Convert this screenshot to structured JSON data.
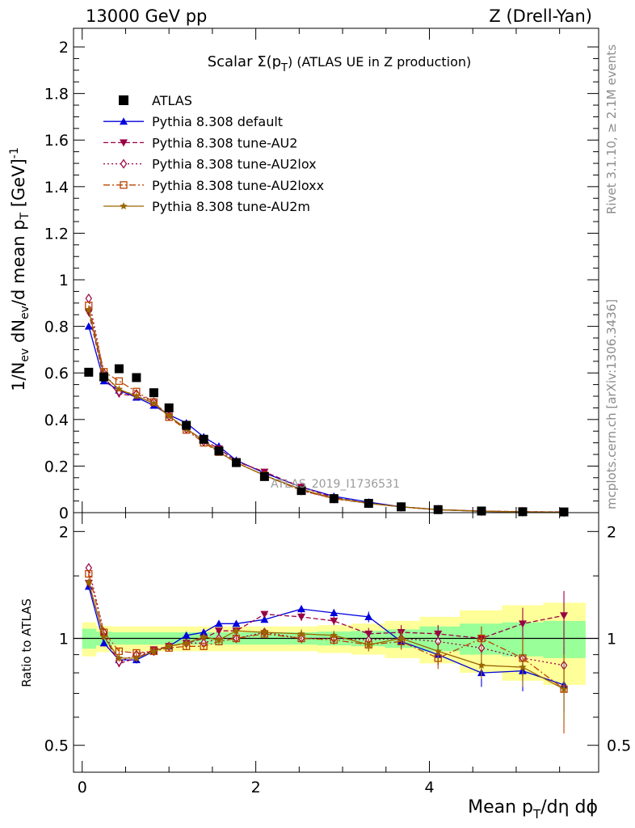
{
  "header": {
    "left": "13000 GeV pp",
    "right": "Z (Drell-Yan)"
  },
  "side_labels": {
    "rivet": "Rivet 3.1.10, ≥ 2.1M events",
    "mcplots": "mcplots.cern.ch [arXiv:1306.3436]"
  },
  "watermark": "ATLAS_2019_I1736531",
  "chart_data": [
    {
      "type": "line",
      "panel": "main",
      "title": "Scalar Σ(p_T) (ATLAS UE in Z production)",
      "title_parts": {
        "pre": "Scalar Σ(p",
        "sub": "T",
        "post": ") (ATLAS UE in Z production)"
      },
      "xlabel": "Mean p_T/dη dϕ",
      "xlabel_parts": {
        "pre": "Mean p",
        "sub": "T",
        "post": "/dη dϕ"
      },
      "ylabel": "1/N_ev dN_ev/d mean p_T [GeV]^-1",
      "xlim": [
        -0.1,
        5.95
      ],
      "ylim": [
        0,
        2.08
      ],
      "x_ticks": [
        0,
        2,
        4
      ],
      "y_ticks": [
        0,
        0.2,
        0.4,
        0.6,
        0.8,
        1,
        1.2,
        1.4,
        1.6,
        1.8,
        2
      ],
      "y_tick_labels": [
        "0",
        "0.2",
        "0.4",
        "0.6",
        "0.8",
        "1",
        "1.2",
        "1.4",
        "1.6",
        "1.8",
        "2"
      ],
      "legend_position": "top-left",
      "x": [
        0.075,
        0.25,
        0.425,
        0.625,
        0.825,
        1.0,
        1.2,
        1.4,
        1.575,
        1.775,
        2.1,
        2.525,
        2.9,
        3.3,
        3.675,
        4.1,
        4.6,
        5.075,
        5.55
      ],
      "data": {
        "name": "ATLAS",
        "values": [
          0.603,
          0.583,
          0.618,
          0.58,
          0.515,
          0.45,
          0.375,
          0.315,
          0.265,
          0.215,
          0.155,
          0.095,
          0.06,
          0.04,
          0.025,
          0.013,
          0.007,
          0.004,
          0.003
        ]
      },
      "series": [
        {
          "name": "Pythia 8.308 default",
          "color": "#0000dd",
          "marker": "triangle-up",
          "dash": "",
          "values": [
            0.8,
            0.565,
            0.525,
            0.495,
            0.46,
            0.42,
            0.385,
            0.325,
            0.285,
            0.225,
            0.17,
            0.11,
            0.07,
            0.045,
            0.025,
            0.013,
            0.006,
            0.003,
            0.002
          ]
        },
        {
          "name": "Pythia 8.308 tune-AU2",
          "color": "#990044",
          "marker": "triangle-down",
          "dash": "6,3",
          "values": [
            0.86,
            0.58,
            0.51,
            0.5,
            0.47,
            0.415,
            0.36,
            0.31,
            0.275,
            0.22,
            0.175,
            0.11,
            0.065,
            0.04,
            0.025,
            0.013,
            0.007,
            0.004,
            0.003
          ]
        },
        {
          "name": "Pythia 8.308 tune-AU2lox",
          "color": "#990044",
          "marker": "diamond-open",
          "dash": "2,3",
          "values": [
            0.92,
            0.6,
            0.52,
            0.51,
            0.475,
            0.415,
            0.36,
            0.305,
            0.265,
            0.215,
            0.16,
            0.095,
            0.06,
            0.04,
            0.025,
            0.013,
            0.006,
            0.004,
            0.002
          ]
        },
        {
          "name": "Pythia 8.308 tune-AU2loxx",
          "color": "#bb4400",
          "marker": "square-open",
          "dash": "8,3,2,3",
          "values": [
            0.89,
            0.605,
            0.565,
            0.52,
            0.475,
            0.41,
            0.355,
            0.3,
            0.26,
            0.215,
            0.16,
            0.095,
            0.06,
            0.04,
            0.025,
            0.012,
            0.007,
            0.003,
            0.002
          ]
        },
        {
          "name": "Pythia 8.308 tune-AU2m",
          "color": "#996600",
          "marker": "star",
          "dash": "",
          "values": [
            0.87,
            0.59,
            0.53,
            0.5,
            0.47,
            0.415,
            0.36,
            0.31,
            0.26,
            0.215,
            0.16,
            0.1,
            0.062,
            0.04,
            0.025,
            0.013,
            0.006,
            0.003,
            0.002
          ]
        }
      ]
    },
    {
      "type": "line",
      "panel": "ratio",
      "ylabel": "Ratio to ATLAS",
      "ylim": [
        0.42,
        2.26
      ],
      "y_ticks": [
        0.5,
        1,
        2
      ],
      "y_tick_labels": [
        "0.5",
        "1",
        "2"
      ],
      "x": [
        0.075,
        0.25,
        0.425,
        0.625,
        0.825,
        1.0,
        1.2,
        1.4,
        1.575,
        1.775,
        2.1,
        2.525,
        2.9,
        3.3,
        3.675,
        4.1,
        4.6,
        5.075,
        5.55
      ],
      "band_inner": [
        0.065,
        0.045,
        0.04,
        0.04,
        0.04,
        0.04,
        0.04,
        0.04,
        0.04,
        0.04,
        0.04,
        0.04,
        0.045,
        0.05,
        0.06,
        0.08,
        0.1,
        0.11,
        0.12
      ],
      "band_outer": [
        0.11,
        0.085,
        0.08,
        0.08,
        0.08,
        0.08,
        0.08,
        0.08,
        0.08,
        0.08,
        0.08,
        0.08,
        0.09,
        0.1,
        0.12,
        0.15,
        0.2,
        0.24,
        0.26
      ],
      "series": [
        {
          "name": "Pythia 8.308 default",
          "values": [
            1.4,
            0.97,
            0.87,
            0.87,
            0.92,
            0.95,
            1.02,
            1.04,
            1.1,
            1.1,
            1.13,
            1.21,
            1.18,
            1.15,
            0.98,
            0.9,
            0.8,
            0.81,
            0.74
          ],
          "errors": [
            0.03,
            0.02,
            0.02,
            0.02,
            0.02,
            0.02,
            0.02,
            0.02,
            0.02,
            0.02,
            0.02,
            0.03,
            0.03,
            0.04,
            0.05,
            0.06,
            0.07,
            0.1,
            0.12
          ]
        },
        {
          "name": "Pythia 8.308 tune-AU2",
          "values": [
            1.43,
            1.02,
            0.85,
            0.88,
            0.93,
            0.95,
            0.97,
            1.0,
            1.05,
            1.05,
            1.17,
            1.15,
            1.12,
            1.03,
            1.04,
            1.03,
            1.0,
            1.1,
            1.16
          ],
          "errors": [
            0.03,
            0.02,
            0.02,
            0.02,
            0.02,
            0.02,
            0.02,
            0.02,
            0.02,
            0.02,
            0.02,
            0.03,
            0.03,
            0.04,
            0.05,
            0.06,
            0.08,
            0.12,
            0.2
          ]
        },
        {
          "name": "Pythia 8.308 tune-AU2lox",
          "values": [
            1.58,
            1.04,
            0.86,
            0.9,
            0.92,
            0.95,
            0.97,
            0.97,
            1.0,
            1.0,
            1.04,
            1.0,
            1.0,
            0.99,
            1.0,
            0.98,
            0.94,
            0.88,
            0.84
          ],
          "errors": [
            0.03,
            0.02,
            0.02,
            0.02,
            0.02,
            0.02,
            0.02,
            0.02,
            0.02,
            0.02,
            0.02,
            0.03,
            0.03,
            0.04,
            0.05,
            0.06,
            0.07,
            0.1,
            0.12
          ]
        },
        {
          "name": "Pythia 8.308 tune-AU2loxx",
          "values": [
            1.52,
            1.04,
            0.92,
            0.91,
            0.92,
            0.94,
            0.95,
            0.95,
            0.98,
            1.0,
            1.03,
            1.0,
            0.99,
            0.96,
            0.98,
            0.88,
            1.0,
            0.88,
            0.72
          ],
          "errors": [
            0.03,
            0.02,
            0.02,
            0.02,
            0.02,
            0.02,
            0.02,
            0.02,
            0.02,
            0.02,
            0.02,
            0.03,
            0.03,
            0.04,
            0.05,
            0.06,
            0.08,
            0.12,
            0.18
          ]
        },
        {
          "name": "Pythia 8.308 tune-AU2m",
          "values": [
            1.44,
            1.01,
            0.88,
            0.88,
            0.92,
            0.95,
            0.97,
            1.01,
            0.99,
            1.05,
            1.04,
            1.03,
            1.02,
            0.96,
            1.0,
            0.92,
            0.84,
            0.83,
            0.72
          ],
          "errors": [
            0.03,
            0.02,
            0.02,
            0.02,
            0.02,
            0.02,
            0.02,
            0.02,
            0.02,
            0.02,
            0.02,
            0.03,
            0.03,
            0.04,
            0.05,
            0.06,
            0.07,
            0.1,
            0.14
          ]
        }
      ]
    }
  ]
}
